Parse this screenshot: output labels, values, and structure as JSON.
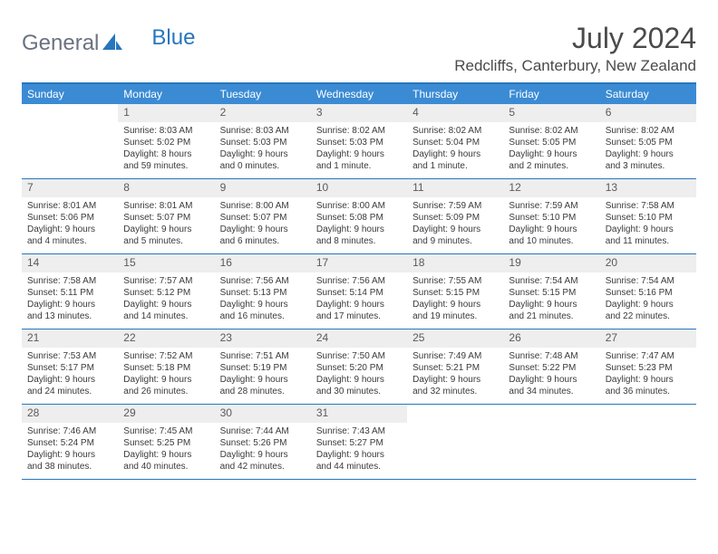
{
  "logo": {
    "text1": "General",
    "text2": "Blue"
  },
  "title": "July 2024",
  "location": "Redcliffs, Canterbury, New Zealand",
  "colors": {
    "header_bg": "#3b8bd4",
    "border": "#2776bd",
    "daynum_bg": "#eeeeee",
    "text": "#3a3a3a",
    "title_text": "#4a4a4a"
  },
  "day_names": [
    "Sunday",
    "Monday",
    "Tuesday",
    "Wednesday",
    "Thursday",
    "Friday",
    "Saturday"
  ],
  "weeks": [
    [
      null,
      {
        "n": "1",
        "sunrise": "8:03 AM",
        "sunset": "5:02 PM",
        "daylight": "8 hours and 59 minutes."
      },
      {
        "n": "2",
        "sunrise": "8:03 AM",
        "sunset": "5:03 PM",
        "daylight": "9 hours and 0 minutes."
      },
      {
        "n": "3",
        "sunrise": "8:02 AM",
        "sunset": "5:03 PM",
        "daylight": "9 hours and 1 minute."
      },
      {
        "n": "4",
        "sunrise": "8:02 AM",
        "sunset": "5:04 PM",
        "daylight": "9 hours and 1 minute."
      },
      {
        "n": "5",
        "sunrise": "8:02 AM",
        "sunset": "5:05 PM",
        "daylight": "9 hours and 2 minutes."
      },
      {
        "n": "6",
        "sunrise": "8:02 AM",
        "sunset": "5:05 PM",
        "daylight": "9 hours and 3 minutes."
      }
    ],
    [
      {
        "n": "7",
        "sunrise": "8:01 AM",
        "sunset": "5:06 PM",
        "daylight": "9 hours and 4 minutes."
      },
      {
        "n": "8",
        "sunrise": "8:01 AM",
        "sunset": "5:07 PM",
        "daylight": "9 hours and 5 minutes."
      },
      {
        "n": "9",
        "sunrise": "8:00 AM",
        "sunset": "5:07 PM",
        "daylight": "9 hours and 6 minutes."
      },
      {
        "n": "10",
        "sunrise": "8:00 AM",
        "sunset": "5:08 PM",
        "daylight": "9 hours and 8 minutes."
      },
      {
        "n": "11",
        "sunrise": "7:59 AM",
        "sunset": "5:09 PM",
        "daylight": "9 hours and 9 minutes."
      },
      {
        "n": "12",
        "sunrise": "7:59 AM",
        "sunset": "5:10 PM",
        "daylight": "9 hours and 10 minutes."
      },
      {
        "n": "13",
        "sunrise": "7:58 AM",
        "sunset": "5:10 PM",
        "daylight": "9 hours and 11 minutes."
      }
    ],
    [
      {
        "n": "14",
        "sunrise": "7:58 AM",
        "sunset": "5:11 PM",
        "daylight": "9 hours and 13 minutes."
      },
      {
        "n": "15",
        "sunrise": "7:57 AM",
        "sunset": "5:12 PM",
        "daylight": "9 hours and 14 minutes."
      },
      {
        "n": "16",
        "sunrise": "7:56 AM",
        "sunset": "5:13 PM",
        "daylight": "9 hours and 16 minutes."
      },
      {
        "n": "17",
        "sunrise": "7:56 AM",
        "sunset": "5:14 PM",
        "daylight": "9 hours and 17 minutes."
      },
      {
        "n": "18",
        "sunrise": "7:55 AM",
        "sunset": "5:15 PM",
        "daylight": "9 hours and 19 minutes."
      },
      {
        "n": "19",
        "sunrise": "7:54 AM",
        "sunset": "5:15 PM",
        "daylight": "9 hours and 21 minutes."
      },
      {
        "n": "20",
        "sunrise": "7:54 AM",
        "sunset": "5:16 PM",
        "daylight": "9 hours and 22 minutes."
      }
    ],
    [
      {
        "n": "21",
        "sunrise": "7:53 AM",
        "sunset": "5:17 PM",
        "daylight": "9 hours and 24 minutes."
      },
      {
        "n": "22",
        "sunrise": "7:52 AM",
        "sunset": "5:18 PM",
        "daylight": "9 hours and 26 minutes."
      },
      {
        "n": "23",
        "sunrise": "7:51 AM",
        "sunset": "5:19 PM",
        "daylight": "9 hours and 28 minutes."
      },
      {
        "n": "24",
        "sunrise": "7:50 AM",
        "sunset": "5:20 PM",
        "daylight": "9 hours and 30 minutes."
      },
      {
        "n": "25",
        "sunrise": "7:49 AM",
        "sunset": "5:21 PM",
        "daylight": "9 hours and 32 minutes."
      },
      {
        "n": "26",
        "sunrise": "7:48 AM",
        "sunset": "5:22 PM",
        "daylight": "9 hours and 34 minutes."
      },
      {
        "n": "27",
        "sunrise": "7:47 AM",
        "sunset": "5:23 PM",
        "daylight": "9 hours and 36 minutes."
      }
    ],
    [
      {
        "n": "28",
        "sunrise": "7:46 AM",
        "sunset": "5:24 PM",
        "daylight": "9 hours and 38 minutes."
      },
      {
        "n": "29",
        "sunrise": "7:45 AM",
        "sunset": "5:25 PM",
        "daylight": "9 hours and 40 minutes."
      },
      {
        "n": "30",
        "sunrise": "7:44 AM",
        "sunset": "5:26 PM",
        "daylight": "9 hours and 42 minutes."
      },
      {
        "n": "31",
        "sunrise": "7:43 AM",
        "sunset": "5:27 PM",
        "daylight": "9 hours and 44 minutes."
      },
      null,
      null,
      null
    ]
  ],
  "labels": {
    "sunrise": "Sunrise:",
    "sunset": "Sunset:",
    "daylight": "Daylight:"
  }
}
